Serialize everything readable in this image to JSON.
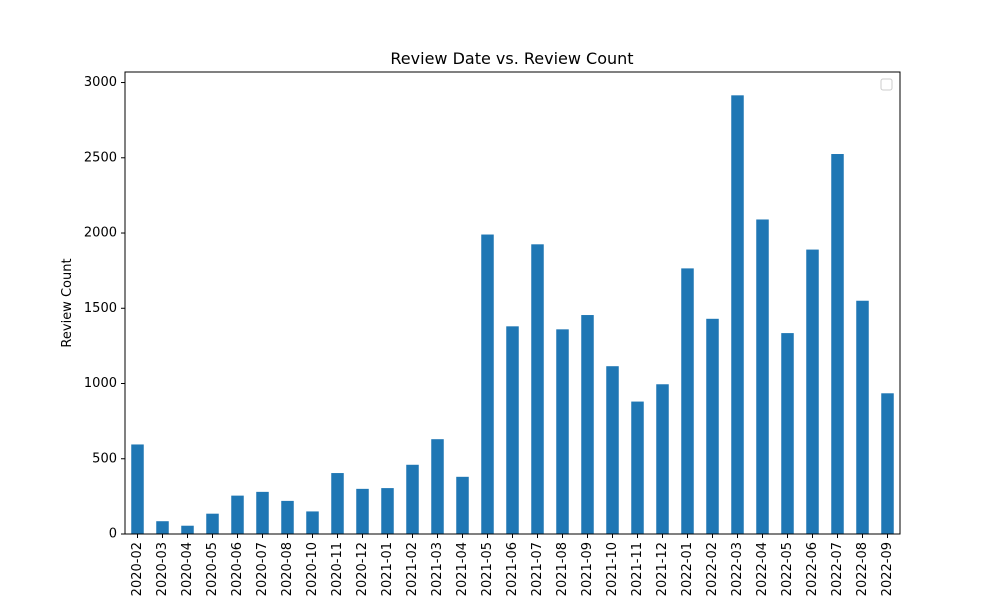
{
  "chart_data": {
    "type": "bar",
    "title": "Review Date vs. Review Count",
    "xlabel": "",
    "ylabel": "Review Count",
    "ylim": [
      0,
      3070
    ],
    "yticks": [
      0,
      500,
      1000,
      1500,
      2000,
      2500,
      3000
    ],
    "legend": "top-right",
    "grid": false,
    "color": "#1f77b4",
    "categories": [
      "2020-02",
      "2020-03",
      "2020-04",
      "2020-05",
      "2020-06",
      "2020-07",
      "2020-08",
      "2020-10",
      "2020-11",
      "2020-12",
      "2021-01",
      "2021-02",
      "2021-03",
      "2021-04",
      "2021-05",
      "2021-06",
      "2021-07",
      "2021-08",
      "2021-09",
      "2021-10",
      "2021-11",
      "2021-12",
      "2022-01",
      "2022-02",
      "2022-03",
      "2022-04",
      "2022-05",
      "2022-06",
      "2022-07",
      "2022-08",
      "2022-09"
    ],
    "series": [
      {
        "values": [
          595,
          85,
          55,
          135,
          255,
          280,
          220,
          150,
          405,
          300,
          305,
          460,
          630,
          380,
          1990,
          1380,
          1925,
          1360,
          1455,
          1115,
          880,
          995,
          1765,
          1430,
          2915,
          2090,
          1335,
          1890,
          2525,
          1550,
          935
        ]
      }
    ]
  }
}
